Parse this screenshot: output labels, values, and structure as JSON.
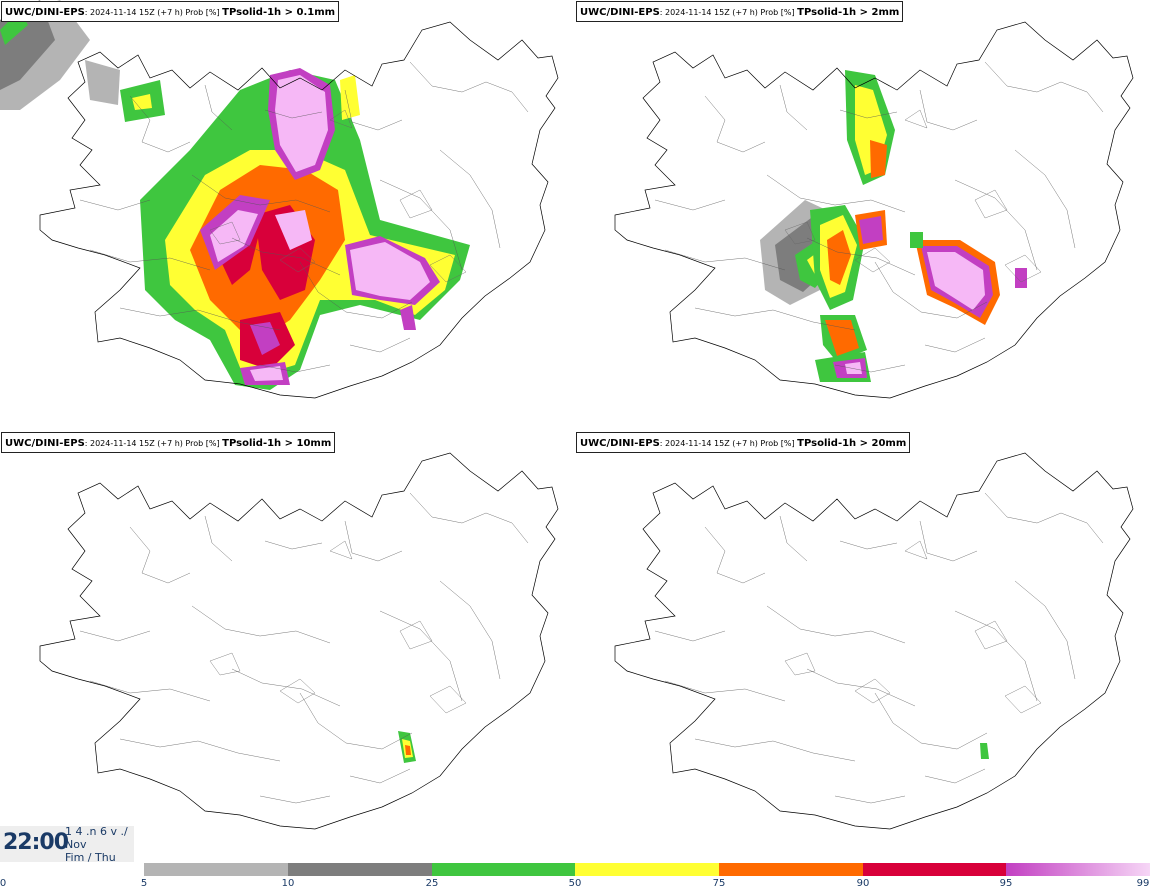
{
  "panels": [
    {
      "model": "UWC/DINI-EPS",
      "meta": ": 2024-11-14 15Z (+7 h) Prob [%] ",
      "variable": "TPsolid-1h > 0.1mm"
    },
    {
      "model": "UWC/DINI-EPS",
      "meta": ": 2024-11-14 15Z (+7 h) Prob [%] ",
      "variable": "TPsolid-1h > 2mm"
    },
    {
      "model": "UWC/DINI-EPS",
      "meta": ": 2024-11-14 15Z (+7 h) Prob [%] ",
      "variable": "TPsolid-1h > 10mm"
    },
    {
      "model": "UWC/DINI-EPS",
      "meta": ": 2024-11-14 15Z (+7 h) Prob [%] ",
      "variable": "TPsolid-1h > 20mm"
    }
  ],
  "valid_time": {
    "time": "22:00",
    "line1": "1 4 .n 6 v ./",
    "line2": "Nov",
    "line3": "Fim / Thu"
  },
  "legend": {
    "thresholds": [
      "0",
      "5",
      "10",
      "25",
      "50",
      "75",
      "90",
      "95",
      "99"
    ],
    "colors": {
      "gray_light": "#b4b4b4",
      "gray_dark": "#7d7d7d",
      "green": "#3fc63f",
      "yellow": "#ffff33",
      "orange": "#ff6a00",
      "red": "#d8003a",
      "magenta": "#c23fc2",
      "pink": "#f6b8f6"
    }
  }
}
